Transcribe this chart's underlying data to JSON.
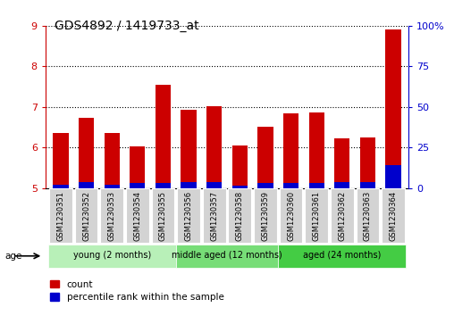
{
  "title": "GDS4892 / 1419733_at",
  "samples": [
    "GSM1230351",
    "GSM1230352",
    "GSM1230353",
    "GSM1230354",
    "GSM1230355",
    "GSM1230356",
    "GSM1230357",
    "GSM1230358",
    "GSM1230359",
    "GSM1230360",
    "GSM1230361",
    "GSM1230362",
    "GSM1230363",
    "GSM1230364"
  ],
  "count_values": [
    6.35,
    6.73,
    6.36,
    6.02,
    7.55,
    6.93,
    7.02,
    6.05,
    6.52,
    6.85,
    6.87,
    6.22,
    6.25,
    8.92
  ],
  "percentile_values": [
    2.0,
    3.5,
    2.0,
    2.8,
    3.0,
    3.5,
    3.5,
    1.5,
    2.8,
    3.0,
    2.8,
    3.5,
    3.5,
    14.0
  ],
  "base": 5.0,
  "ylim": [
    5.0,
    9.0
  ],
  "yticks_left": [
    5,
    6,
    7,
    8,
    9
  ],
  "yticks_right": [
    0,
    25,
    50,
    75,
    100
  ],
  "ylabel_right_color": "#0000cc",
  "count_color": "#cc0000",
  "percentile_color": "#0000cc",
  "bar_width": 0.6,
  "group_defs": [
    {
      "label": "young (2 months)",
      "start": 0,
      "end": 5,
      "color": "#b8f0b8"
    },
    {
      "label": "middle aged (12 months)",
      "start": 5,
      "end": 9,
      "color": "#77dd77"
    },
    {
      "label": "aged (24 months)",
      "start": 9,
      "end": 14,
      "color": "#44cc44"
    }
  ],
  "age_label": "age",
  "legend_count": "count",
  "legend_percentile": "percentile rank within the sample",
  "tick_color_left": "#cc0000",
  "tick_color_right": "#0000cc",
  "grid_style": "dotted",
  "background_color": "#ffffff",
  "xticklabel_bg": "#d3d3d3"
}
